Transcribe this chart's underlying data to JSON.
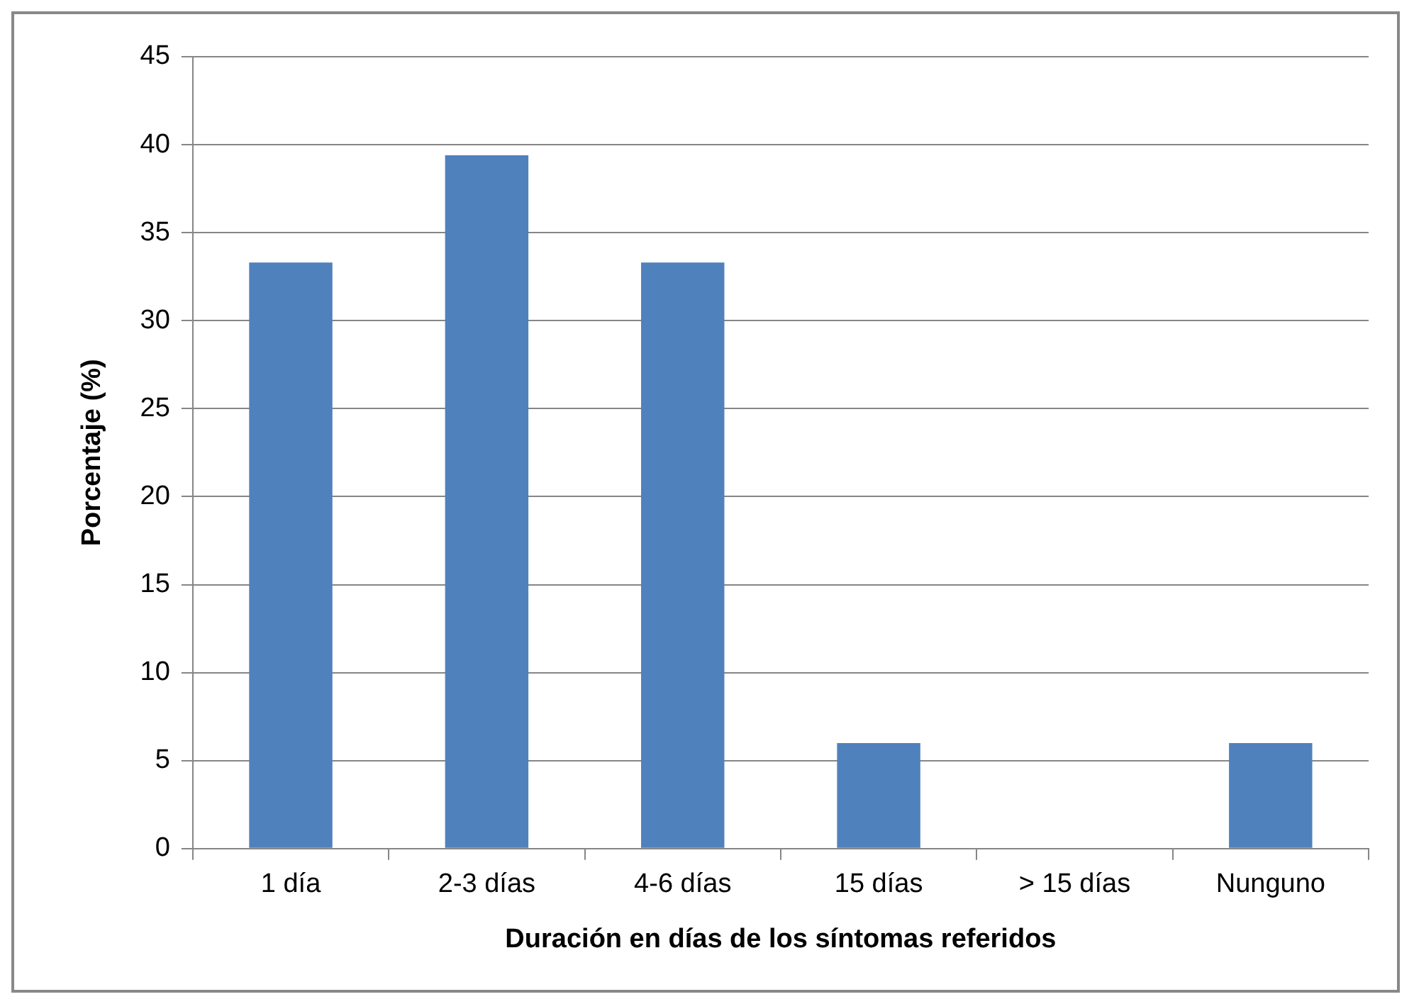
{
  "chart_data": {
    "type": "bar",
    "xlabel": "Duración en días de los síntomas referidos",
    "ylabel": "Porcentaje (%)",
    "categories": [
      "1 día",
      "2-3 días",
      "4-6 días",
      "15 días",
      "> 15 días",
      "Nunguno"
    ],
    "values": [
      33.3,
      39.4,
      33.3,
      6,
      0,
      6
    ],
    "color": "#4f81bd",
    "ylim": [
      0,
      45
    ],
    "yticks": [
      0,
      5,
      10,
      15,
      20,
      25,
      30,
      35,
      40,
      45
    ],
    "grid": "y",
    "legend": false
  }
}
